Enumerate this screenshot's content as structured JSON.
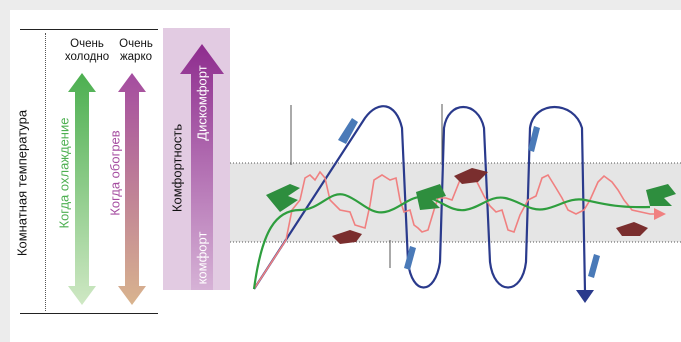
{
  "legend": {
    "room_temperature": "Комнатная температура",
    "very_cold": [
      "Очень",
      "холодно"
    ],
    "very_hot": [
      "Очень",
      "жарко"
    ],
    "when_cooling": "Когда охлаждение",
    "when_heating": "Когда обогрев",
    "comfortability": "Комфортность",
    "discomfort": "Дискомфорт",
    "comfort": "комфорт"
  },
  "colors": {
    "cooling": "#4caf50",
    "heating": "#a44ca0",
    "comfort_panel": "#e2cbe2",
    "comfort_arrow": "#8e2c8e",
    "conventional_curve": "#2a3a8c",
    "inverter_curve": "#f08080",
    "comfort_curve": "#2e9e3e",
    "comfort_band": "#e5e5e5"
  },
  "icons": [
    "snowflake-fan-icon",
    "heater-fan-icon",
    "air-flow-icon"
  ]
}
